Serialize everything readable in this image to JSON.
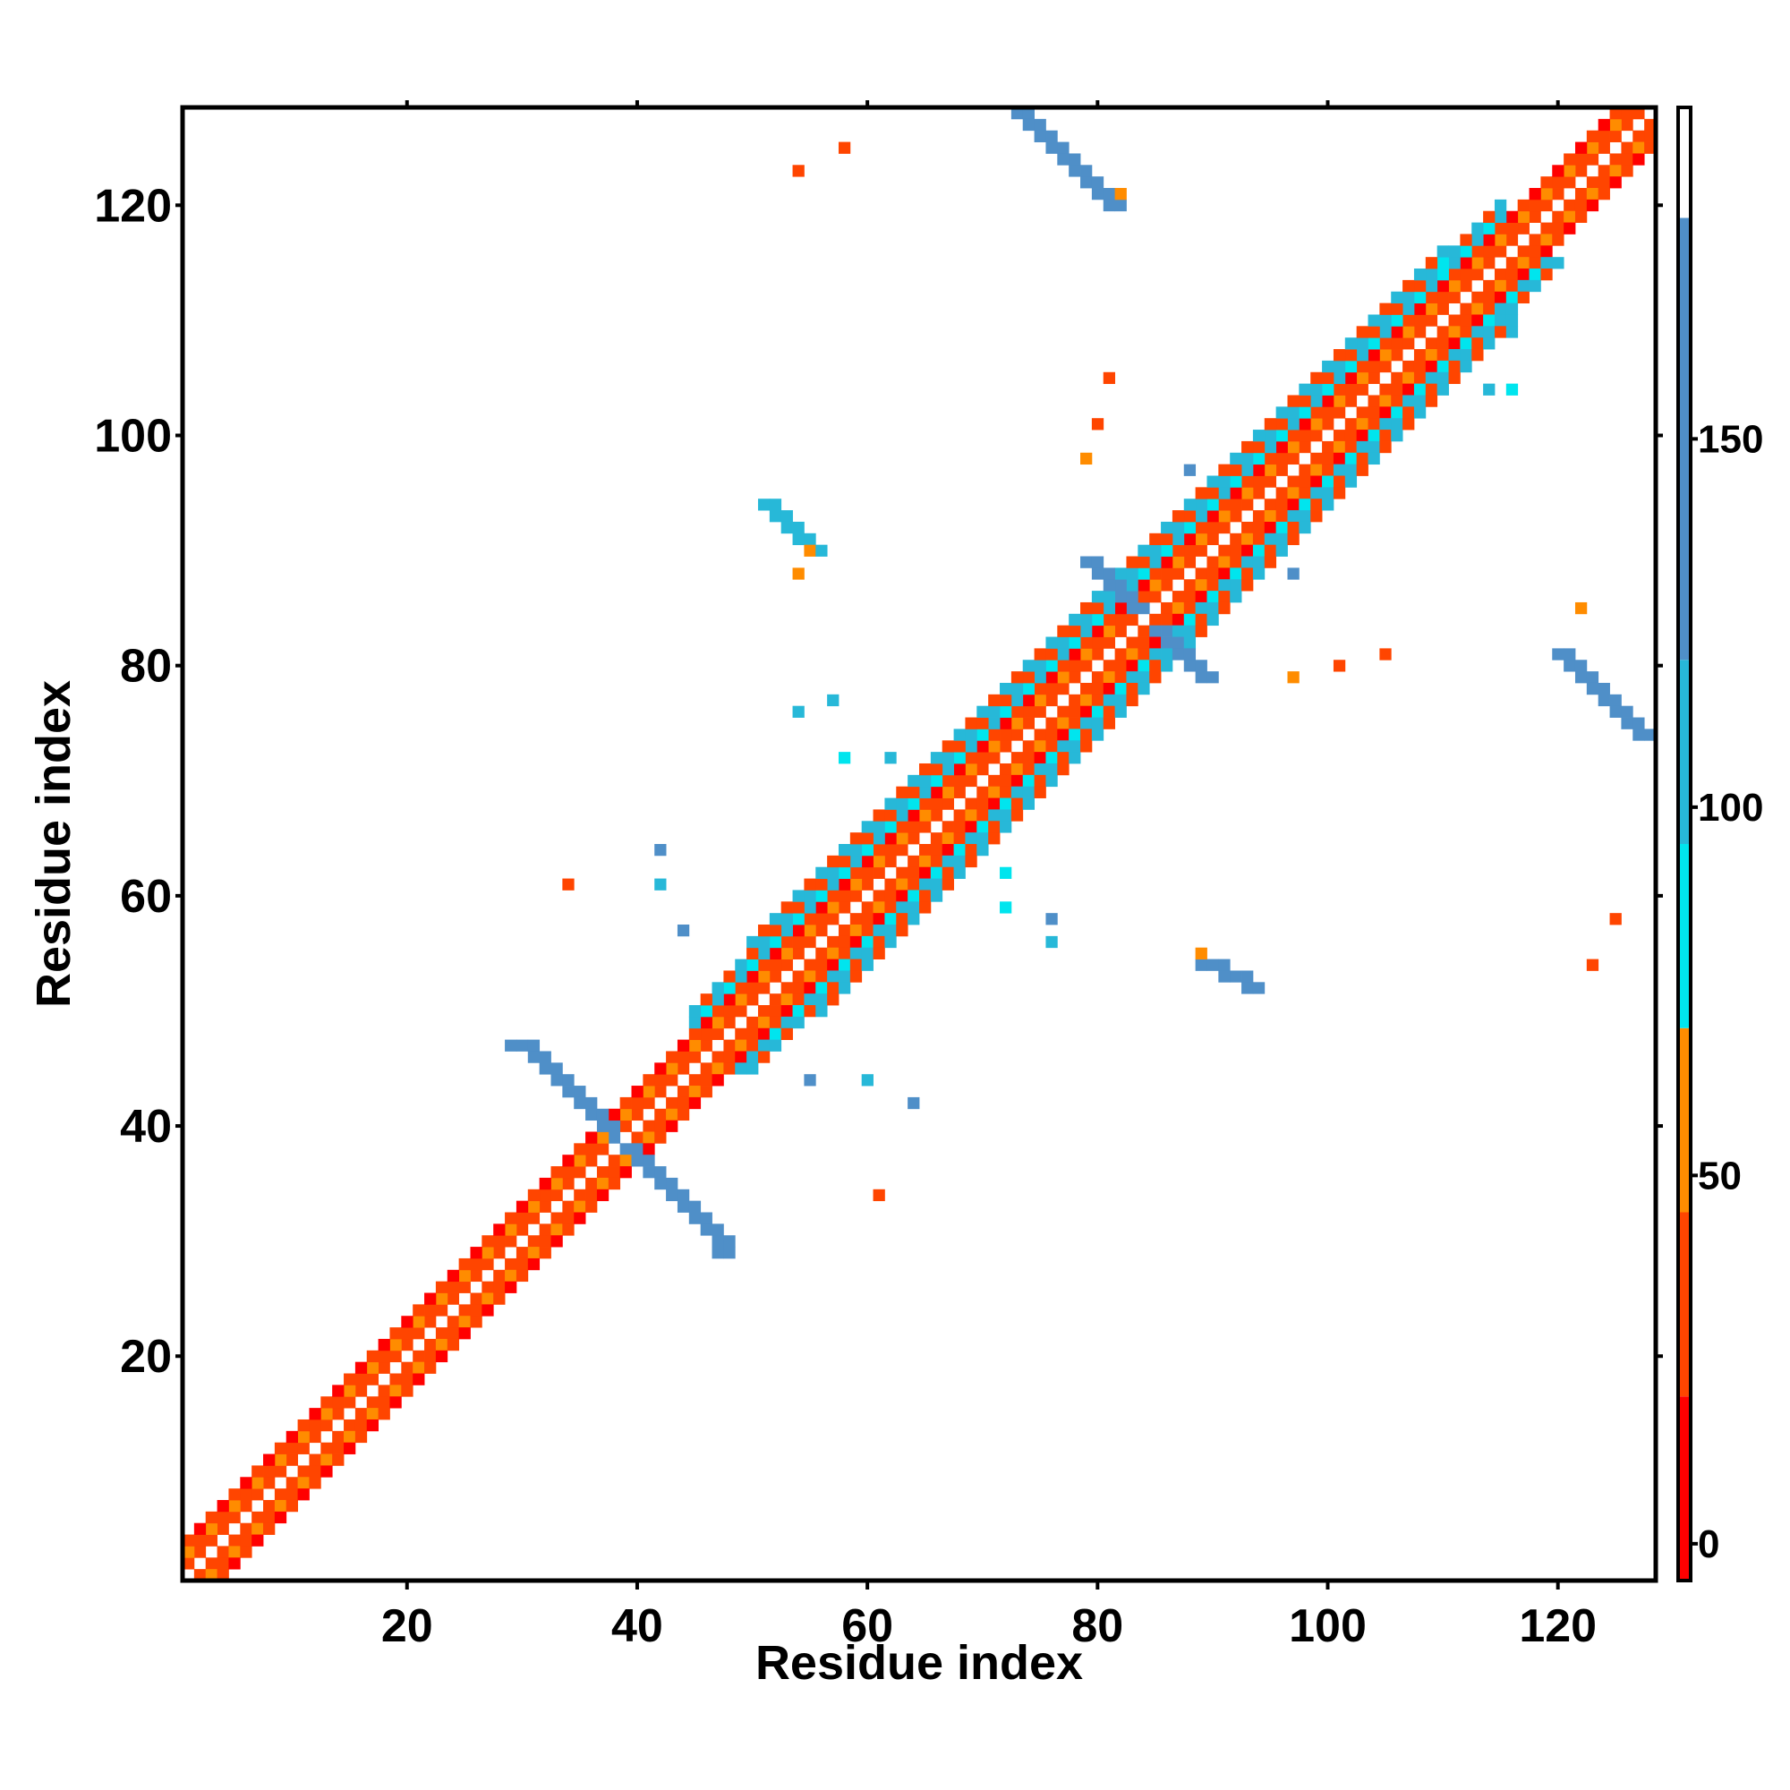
{
  "chart_data": {
    "type": "heatmap",
    "title": "",
    "xlabel": "Residue index",
    "ylabel": "Residue index",
    "xlim": [
      0.5,
      128.5
    ],
    "ylim": [
      0.5,
      128.5
    ],
    "x_ticks": [
      20,
      40,
      60,
      80,
      100,
      120
    ],
    "y_ticks": [
      20,
      40,
      60,
      80,
      100,
      120
    ],
    "grid": false,
    "colorbar": {
      "range": [
        -5,
        195
      ],
      "ticks": [
        0,
        50,
        100,
        150
      ],
      "bands": [
        {
          "from": -5,
          "to": 20,
          "color": "#ff0000"
        },
        {
          "from": 20,
          "to": 45,
          "color": "#ff4500"
        },
        {
          "from": 45,
          "to": 70,
          "color": "#ff8c00"
        },
        {
          "from": 70,
          "to": 95,
          "color": "#00e5ee"
        },
        {
          "from": 95,
          "to": 120,
          "color": "#27b8d8"
        },
        {
          "from": 120,
          "to": 180,
          "color": "#4f8fc8"
        },
        {
          "from": 180,
          "to": 195,
          "color": "#ffffff"
        }
      ]
    },
    "colors": {
      "red": "#ff0000",
      "orangered": "#ff4500",
      "orange": "#ff8c00",
      "cyan": "#00e5ee",
      "lightblue": "#27b8d8",
      "steelblue": "#4f8fc8"
    },
    "diagonal_bands": [
      {
        "from": 1,
        "to": 128,
        "offset": 1,
        "values": [
          30,
          35
        ]
      },
      {
        "from": 1,
        "to": 128,
        "offset": 2,
        "values": [
          40,
          60
        ]
      },
      {
        "from": 1,
        "to": 128,
        "offset": 3,
        "values": [
          5,
          30
        ]
      },
      {
        "from": 45,
        "to": 115,
        "offset": 4,
        "values": [
          90,
          100
        ]
      },
      {
        "from": 45,
        "to": 115,
        "offset": 5,
        "values": [
          40,
          100
        ]
      },
      {
        "from": 50,
        "to": 110,
        "offset": 6,
        "values": [
          110,
          30
        ]
      }
    ],
    "regions": [
      {
        "pairs": [
          [
            29,
            47
          ],
          [
            30,
            47
          ],
          [
            31,
            46
          ],
          [
            32,
            45
          ],
          [
            33,
            44
          ],
          [
            34,
            43
          ],
          [
            35,
            42
          ],
          [
            36,
            41
          ],
          [
            37,
            40
          ],
          [
            38,
            39
          ]
        ],
        "value": 140
      },
      {
        "pairs": [
          [
            39,
            38
          ],
          [
            40,
            37
          ],
          [
            41,
            36
          ],
          [
            42,
            35
          ],
          [
            43,
            34
          ],
          [
            44,
            33
          ],
          [
            45,
            32
          ],
          [
            46,
            31
          ],
          [
            47,
            30
          ],
          [
            47,
            29
          ]
        ],
        "value": 140
      },
      {
        "pairs": [
          [
            79,
            89
          ],
          [
            80,
            88
          ],
          [
            81,
            87
          ],
          [
            82,
            86
          ],
          [
            83,
            85
          ]
        ],
        "value": 140
      },
      {
        "pairs": [
          [
            85,
            83
          ],
          [
            86,
            82
          ],
          [
            87,
            81
          ],
          [
            88,
            80
          ],
          [
            89,
            79
          ]
        ],
        "value": 140
      },
      {
        "pairs": [
          [
            73,
            128
          ],
          [
            74,
            127
          ],
          [
            75,
            126
          ],
          [
            76,
            125
          ],
          [
            77,
            124
          ],
          [
            78,
            123
          ],
          [
            79,
            122
          ],
          [
            80,
            121
          ],
          [
            81,
            120
          ]
        ],
        "value": 140
      },
      {
        "pairs": [
          [
            120,
            81
          ],
          [
            121,
            80
          ],
          [
            122,
            79
          ],
          [
            123,
            78
          ],
          [
            124,
            77
          ],
          [
            125,
            76
          ],
          [
            126,
            75
          ],
          [
            127,
            74
          ]
        ],
        "value": 140
      },
      {
        "pairs": [
          [
            51,
            94
          ],
          [
            52,
            93
          ],
          [
            53,
            92
          ],
          [
            54,
            91
          ],
          [
            55,
            90
          ]
        ],
        "value": 100
      },
      {
        "pairs": [
          [
            89,
            54
          ],
          [
            90,
            54
          ],
          [
            91,
            53
          ],
          [
            92,
            53
          ],
          [
            93,
            52
          ]
        ],
        "value": 140
      }
    ],
    "spots": [
      [
        58,
        125,
        30
      ],
      [
        54,
        123,
        30
      ],
      [
        82,
        121,
        55
      ],
      [
        81,
        105,
        30
      ],
      [
        80,
        101,
        30
      ],
      [
        79,
        98,
        55
      ],
      [
        88,
        97,
        140
      ],
      [
        97,
        88,
        140
      ],
      [
        97,
        79,
        55
      ],
      [
        101,
        80,
        30
      ],
      [
        105,
        81,
        30
      ],
      [
        122,
        85,
        55
      ],
      [
        125,
        58,
        30
      ],
      [
        123,
        54,
        30
      ],
      [
        34,
        61,
        30
      ],
      [
        61,
        34,
        30
      ],
      [
        42,
        64,
        140
      ],
      [
        42,
        61,
        110
      ],
      [
        44,
        57,
        140
      ],
      [
        54,
        76,
        110
      ],
      [
        57,
        77,
        110
      ],
      [
        58,
        72,
        90
      ],
      [
        62,
        72,
        110
      ],
      [
        72,
        62,
        90
      ],
      [
        72,
        59,
        90
      ],
      [
        76,
        58,
        140
      ],
      [
        76,
        56,
        110
      ],
      [
        55,
        44,
        140
      ],
      [
        60,
        44,
        110
      ],
      [
        64,
        42,
        140
      ],
      [
        50,
        46,
        110
      ],
      [
        48,
        52,
        90
      ],
      [
        54,
        88,
        55
      ],
      [
        55,
        90,
        55
      ],
      [
        89,
        55,
        55
      ],
      [
        110,
        115,
        90
      ],
      [
        115,
        110,
        110
      ],
      [
        116,
        109,
        110
      ],
      [
        116,
        104,
        90
      ],
      [
        114,
        104,
        110
      ]
    ]
  }
}
